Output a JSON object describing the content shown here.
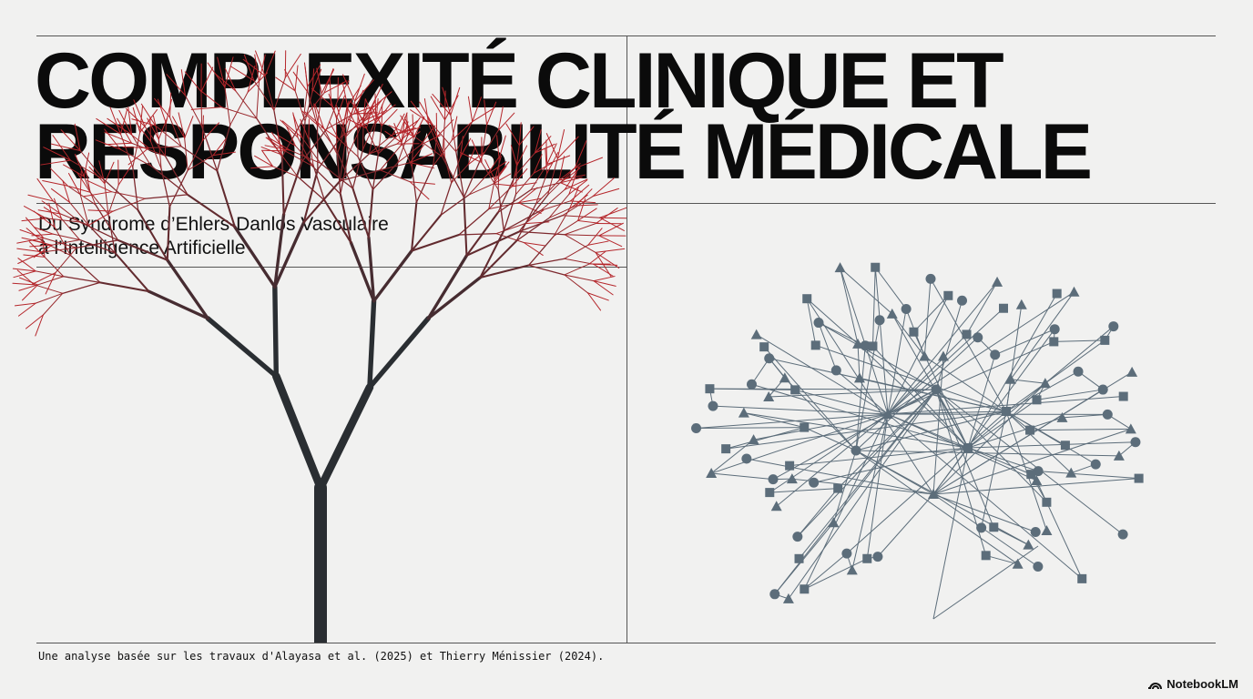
{
  "slide": {
    "title_line1": "COMPLEXITÉ CLINIQUE ET",
    "title_line2": "RESPONSABILITÉ MÉDICALE",
    "subtitle_line1": "Du Syndrome d’Ehlers-Danlos Vasculaire",
    "subtitle_line2": "à l’Intelligence Artificielle",
    "footer": "Une analyse basée sur les travaux d'Alayasa et al. (2025) et Thierry Ménissier (2024).",
    "brand": "NotebookLM"
  },
  "illustrations": {
    "left": "vascular-tree",
    "right": "network-graph"
  },
  "colors": {
    "background": "#f1f1f0",
    "tree_trunk": "#2a2e32",
    "tree_tips": "#b5262b",
    "network": "#5c6d7a"
  }
}
